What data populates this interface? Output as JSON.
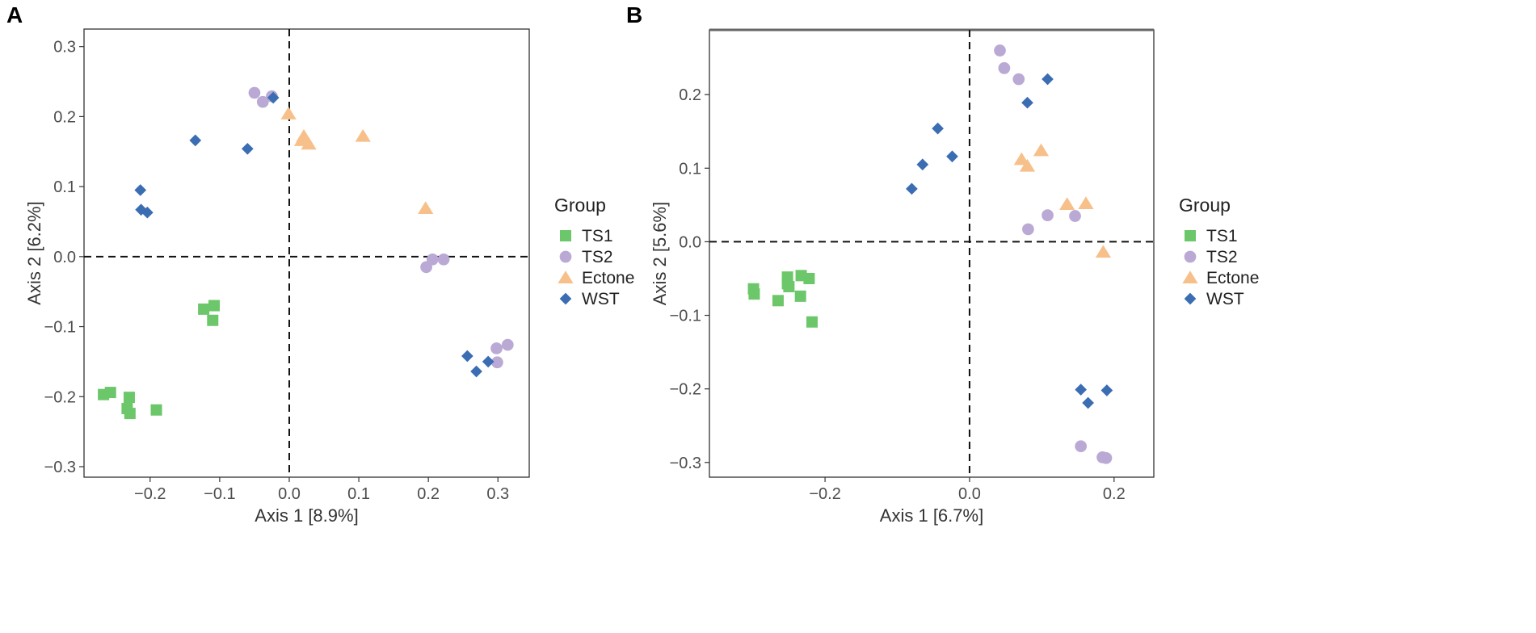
{
  "colors": {
    "TS1": "#6cc76b",
    "TS2": "#b9a9d4",
    "Ectone": "#f7c08a",
    "WST": "#3b6db3"
  },
  "legend": {
    "title": "Group",
    "items": [
      {
        "name": "TS1",
        "shape": "square"
      },
      {
        "name": "TS2",
        "shape": "circle"
      },
      {
        "name": "Ectone",
        "shape": "triangle"
      },
      {
        "name": "WST",
        "shape": "diamond"
      }
    ]
  },
  "chart_data": [
    {
      "type": "scatter",
      "panel_label": "A",
      "xlabel": "Axis 1 [8.9%]",
      "ylabel": "Axis 2 [6.2%]",
      "xlim": [
        -0.295,
        0.345
      ],
      "ylim": [
        -0.315,
        0.325
      ],
      "xticks": [
        -0.2,
        -0.1,
        0.0,
        0.1,
        0.2,
        0.3
      ],
      "xtick_labels": [
        "−0.2",
        "−0.1",
        "0.0",
        "0.1",
        "0.2",
        "0.3"
      ],
      "yticks": [
        -0.3,
        -0.2,
        -0.1,
        0.0,
        0.1,
        0.2,
        0.3
      ],
      "ytick_labels": [
        "−0.3",
        "−0.2",
        "−0.1",
        "0.0",
        "0.1",
        "0.2",
        "0.3"
      ],
      "reference_lines": {
        "x": 0,
        "y": 0
      },
      "series": [
        {
          "name": "TS1",
          "points": [
            [
              -0.267,
              -0.197
            ],
            [
              -0.257,
              -0.194
            ],
            [
              -0.23,
              -0.201
            ],
            [
              -0.233,
              -0.217
            ],
            [
              -0.229,
              -0.224
            ],
            [
              -0.191,
              -0.219
            ],
            [
              -0.123,
              -0.075
            ],
            [
              -0.108,
              -0.07
            ],
            [
              -0.11,
              -0.091
            ]
          ]
        },
        {
          "name": "TS2",
          "points": [
            [
              -0.05,
              0.234
            ],
            [
              -0.038,
              0.221
            ],
            [
              -0.025,
              0.229
            ],
            [
              0.197,
              -0.015
            ],
            [
              0.206,
              -0.004
            ],
            [
              0.222,
              -0.004
            ],
            [
              0.298,
              -0.131
            ],
            [
              0.314,
              -0.126
            ],
            [
              0.299,
              -0.151
            ]
          ]
        },
        {
          "name": "Ectone",
          "points": [
            [
              -0.001,
              0.204
            ],
            [
              0.018,
              0.166
            ],
            [
              0.021,
              0.172
            ],
            [
              0.028,
              0.161
            ],
            [
              0.106,
              0.172
            ],
            [
              0.196,
              0.069
            ]
          ]
        },
        {
          "name": "WST",
          "points": [
            [
              -0.023,
              0.227
            ],
            [
              -0.135,
              0.166
            ],
            [
              -0.06,
              0.154
            ],
            [
              -0.214,
              0.095
            ],
            [
              -0.213,
              0.067
            ],
            [
              -0.204,
              0.063
            ],
            [
              0.256,
              -0.142
            ],
            [
              0.269,
              -0.164
            ],
            [
              0.286,
              -0.15
            ]
          ]
        }
      ]
    },
    {
      "type": "scatter",
      "panel_label": "B",
      "xlabel": "Axis 1 [6.7%]",
      "ylabel": "Axis 2 [5.6%]",
      "xlim": [
        -0.36,
        0.255
      ],
      "ylim": [
        -0.32,
        0.288
      ],
      "xticks": [
        -0.2,
        0.0,
        0.2
      ],
      "xtick_labels": [
        "−0.2",
        "0.0",
        "0.2"
      ],
      "yticks": [
        -0.3,
        -0.2,
        -0.1,
        0.0,
        0.1,
        0.2
      ],
      "ytick_labels": [
        "−0.3",
        "−0.2",
        "−0.1",
        "0.0",
        "0.1",
        "0.2"
      ],
      "reference_lines": {
        "x": 0,
        "y": 0
      },
      "series": [
        {
          "name": "TS1",
          "points": [
            [
              -0.299,
              -0.064
            ],
            [
              -0.298,
              -0.071
            ],
            [
              -0.265,
              -0.08
            ],
            [
              -0.252,
              -0.048
            ],
            [
              -0.252,
              -0.057
            ],
            [
              -0.25,
              -0.061
            ],
            [
              -0.233,
              -0.046
            ],
            [
              -0.234,
              -0.074
            ],
            [
              -0.222,
              -0.05
            ],
            [
              -0.218,
              -0.109
            ]
          ]
        },
        {
          "name": "TS2",
          "points": [
            [
              0.042,
              0.26
            ],
            [
              0.048,
              0.236
            ],
            [
              0.068,
              0.221
            ],
            [
              0.081,
              0.017
            ],
            [
              0.108,
              0.036
            ],
            [
              0.146,
              0.035
            ],
            [
              0.154,
              -0.278
            ],
            [
              0.184,
              -0.293
            ],
            [
              0.189,
              -0.294
            ]
          ]
        },
        {
          "name": "Ectone",
          "points": [
            [
              0.072,
              0.112
            ],
            [
              0.08,
              0.103
            ],
            [
              0.099,
              0.124
            ],
            [
              0.135,
              0.051
            ],
            [
              0.161,
              0.052
            ],
            [
              0.185,
              -0.014
            ]
          ]
        },
        {
          "name": "WST",
          "points": [
            [
              0.108,
              0.221
            ],
            [
              0.08,
              0.189
            ],
            [
              -0.044,
              0.154
            ],
            [
              -0.065,
              0.105
            ],
            [
              -0.024,
              0.116
            ],
            [
              -0.08,
              0.072
            ],
            [
              0.154,
              -0.201
            ],
            [
              0.164,
              -0.219
            ],
            [
              0.19,
              -0.202
            ]
          ]
        }
      ]
    }
  ]
}
